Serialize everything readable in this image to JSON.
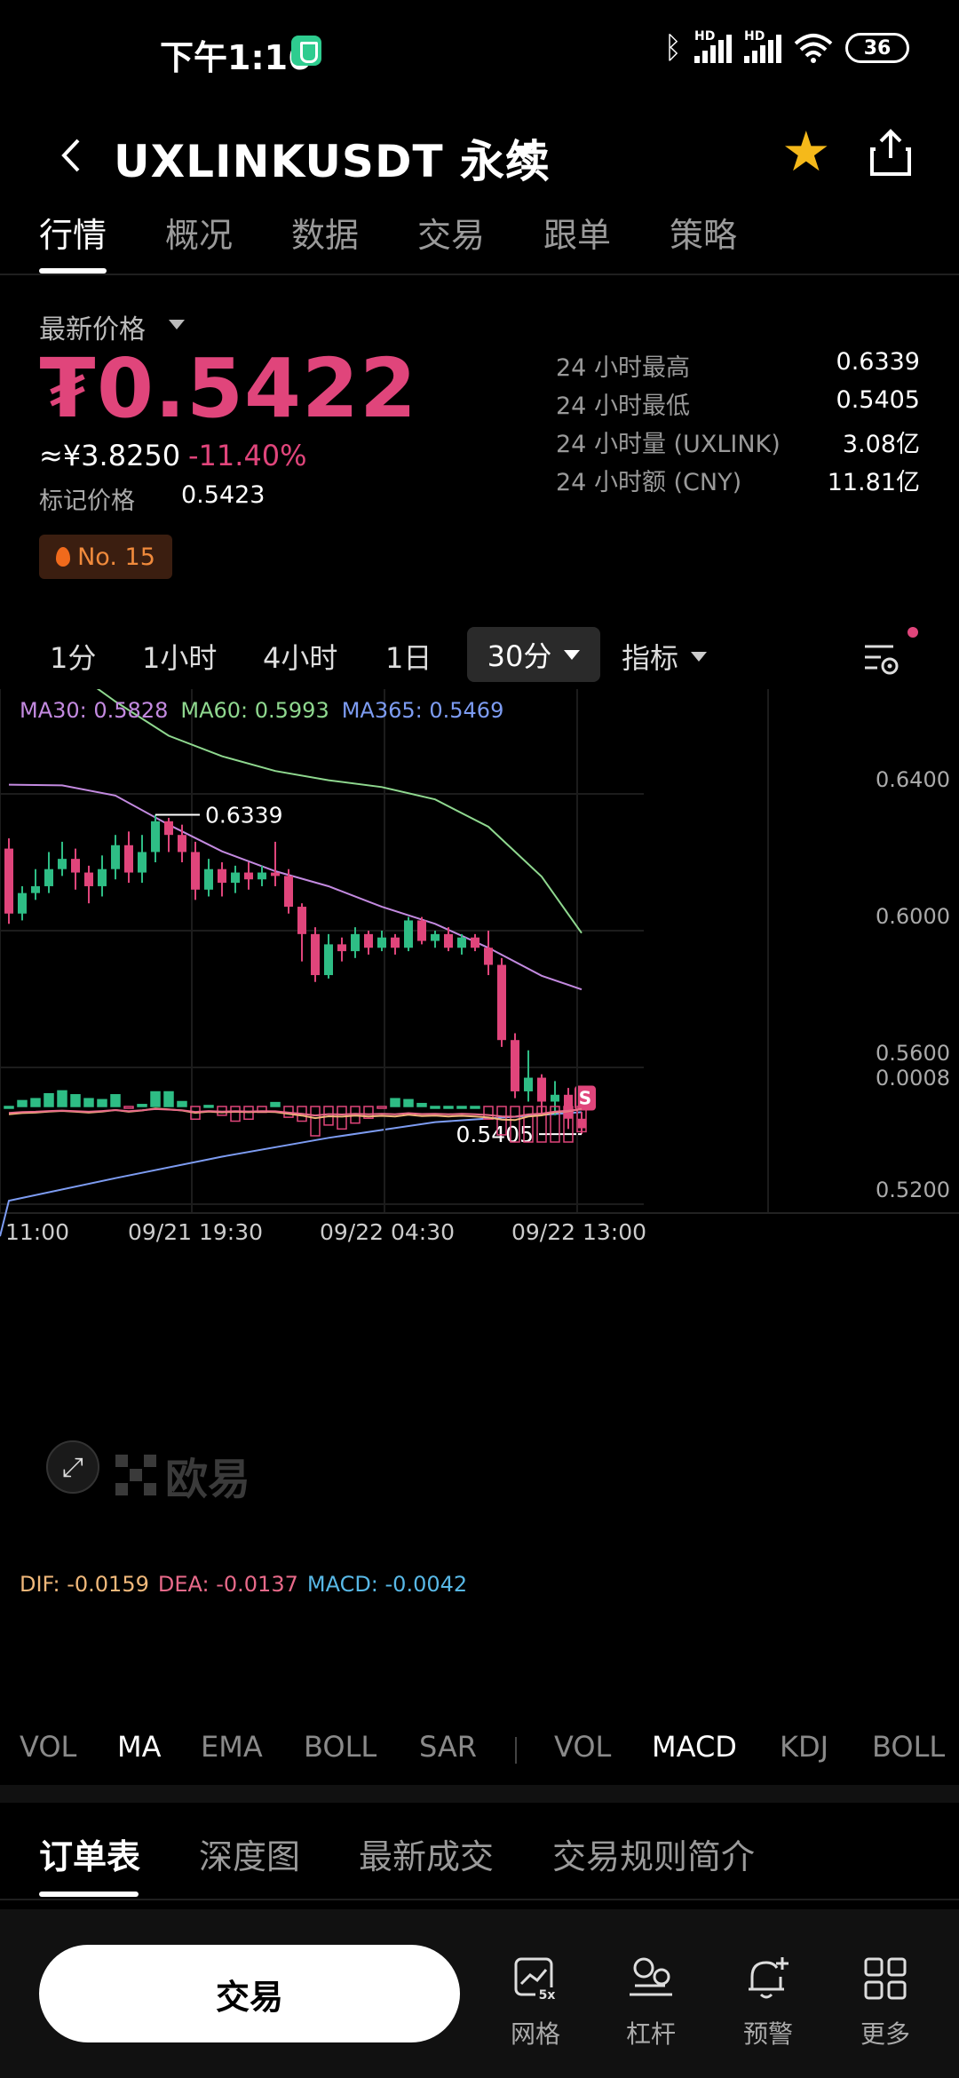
{
  "status_bar": {
    "time": "下午1:16",
    "hd1": "HD",
    "hd2": "HD",
    "battery": "36"
  },
  "header": {
    "title": "UXLINKUSDT 永续"
  },
  "tabs": [
    "行情",
    "概况",
    "数据",
    "交易",
    "跟单",
    "策略"
  ],
  "price_block": {
    "label": "最新价格",
    "price": "₮0.5422",
    "cny": "≈¥3.8250",
    "change": "-11.40%",
    "mark_label": "标记价格",
    "mark_value": "0.5423",
    "rank": "No. 15"
  },
  "stats": [
    {
      "label": "24 小时最高",
      "value": "0.6339"
    },
    {
      "label": "24 小时最低",
      "value": "0.5405"
    },
    {
      "label": "24 小时量 (UXLINK)",
      "value": "3.08亿"
    },
    {
      "label": "24 小时额 (CNY)",
      "value": "11.81亿"
    }
  ],
  "intervals": {
    "items": [
      "1分",
      "1小时",
      "4小时",
      "1日"
    ],
    "active": "30分",
    "indicator": "指标"
  },
  "ma_legend": {
    "ma30": "MA30: 0.5828",
    "ma60": "MA60: 0.5993",
    "ma365": "MA365: 0.5469"
  },
  "colors": {
    "up": "#2ebd85",
    "down": "#e0457b",
    "ma30": "#c38ae0",
    "ma60": "#8fd88f",
    "ma365": "#7d9cf2",
    "dif": "#f0b87a",
    "dea": "#e86a8a",
    "macd": "#58b8e6"
  },
  "chart_data": {
    "type": "candlestick",
    "y_ticks": [
      "0.6400",
      "0.6000",
      "0.5600",
      "0.5200"
    ],
    "x_ticks": [
      "11:00",
      "09/21 19:30",
      "09/22 04:30",
      "09/22 13:00"
    ],
    "high_annotation": "0.6339",
    "low_annotation": "0.5405",
    "signal_marker": "S",
    "ma30_points": [
      [
        0,
        0.6427
      ],
      [
        4,
        0.6425
      ],
      [
        8,
        0.6395
      ],
      [
        12,
        0.631
      ],
      [
        16,
        0.6232
      ],
      [
        20,
        0.6174
      ],
      [
        24,
        0.613
      ],
      [
        28,
        0.607
      ],
      [
        32,
        0.602
      ],
      [
        36,
        0.595
      ],
      [
        40,
        0.5868
      ],
      [
        43,
        0.5828
      ]
    ],
    "ma60_points": [
      [
        0,
        0.694
      ],
      [
        4,
        0.6782
      ],
      [
        8,
        0.667
      ],
      [
        12,
        0.657
      ],
      [
        16,
        0.651
      ],
      [
        20,
        0.6467
      ],
      [
        24,
        0.644
      ],
      [
        28,
        0.642
      ],
      [
        32,
        0.6384
      ],
      [
        36,
        0.6304
      ],
      [
        40,
        0.6158
      ],
      [
        43,
        0.5993
      ]
    ],
    "ma365_points": [
      [
        0,
        0.521
      ],
      [
        8,
        0.5276
      ],
      [
        16,
        0.5339
      ],
      [
        24,
        0.5394
      ],
      [
        32,
        0.544
      ],
      [
        43,
        0.5469
      ]
    ],
    "candles": [
      [
        0.624,
        0.605,
        0.627,
        0.602
      ],
      [
        0.605,
        0.611,
        0.613,
        0.603
      ],
      [
        0.611,
        0.613,
        0.618,
        0.609
      ],
      [
        0.613,
        0.618,
        0.623,
        0.611
      ],
      [
        0.618,
        0.621,
        0.626,
        0.616
      ],
      [
        0.621,
        0.617,
        0.624,
        0.612
      ],
      [
        0.617,
        0.613,
        0.619,
        0.608
      ],
      [
        0.613,
        0.618,
        0.622,
        0.61
      ],
      [
        0.618,
        0.625,
        0.628,
        0.615
      ],
      [
        0.625,
        0.617,
        0.629,
        0.614
      ],
      [
        0.617,
        0.623,
        0.628,
        0.614
      ],
      [
        0.623,
        0.632,
        0.6339,
        0.62
      ],
      [
        0.632,
        0.628,
        0.633,
        0.623
      ],
      [
        0.628,
        0.623,
        0.631,
        0.62
      ],
      [
        0.623,
        0.612,
        0.626,
        0.609
      ],
      [
        0.612,
        0.618,
        0.621,
        0.61
      ],
      [
        0.618,
        0.614,
        0.62,
        0.61
      ],
      [
        0.614,
        0.617,
        0.619,
        0.611
      ],
      [
        0.617,
        0.615,
        0.62,
        0.612
      ],
      [
        0.615,
        0.617,
        0.619,
        0.613
      ],
      [
        0.617,
        0.616,
        0.626,
        0.613
      ],
      [
        0.616,
        0.607,
        0.618,
        0.605
      ],
      [
        0.607,
        0.599,
        0.608,
        0.591
      ],
      [
        0.599,
        0.587,
        0.601,
        0.585
      ],
      [
        0.587,
        0.596,
        0.599,
        0.586
      ],
      [
        0.596,
        0.594,
        0.598,
        0.591
      ],
      [
        0.594,
        0.599,
        0.601,
        0.592
      ],
      [
        0.599,
        0.595,
        0.6,
        0.593
      ],
      [
        0.595,
        0.598,
        0.6,
        0.594
      ],
      [
        0.598,
        0.595,
        0.599,
        0.593
      ],
      [
        0.595,
        0.603,
        0.604,
        0.594
      ],
      [
        0.603,
        0.597,
        0.604,
        0.596
      ],
      [
        0.597,
        0.599,
        0.6,
        0.595
      ],
      [
        0.599,
        0.595,
        0.601,
        0.594
      ],
      [
        0.595,
        0.598,
        0.599,
        0.593
      ],
      [
        0.598,
        0.595,
        0.599,
        0.594
      ],
      [
        0.595,
        0.59,
        0.6,
        0.587
      ],
      [
        0.59,
        0.568,
        0.592,
        0.566
      ],
      [
        0.568,
        0.553,
        0.57,
        0.551
      ],
      [
        0.553,
        0.557,
        0.565,
        0.55
      ],
      [
        0.557,
        0.55,
        0.558,
        0.546
      ],
      [
        0.55,
        0.552,
        0.556,
        0.546
      ],
      [
        0.552,
        0.545,
        0.554,
        0.542
      ],
      [
        0.545,
        0.5422,
        0.547,
        0.5405
      ]
    ],
    "macd_tick": "0.0008",
    "macd_legend": {
      "dif": "DIF: -0.0159",
      "dea": "DEA: -0.0137",
      "macd": "MACD: -0.0042"
    }
  },
  "indicator_tabs": {
    "main": [
      "VOL",
      "MA",
      "EMA",
      "BOLL",
      "SAR"
    ],
    "sub": [
      "VOL",
      "MACD",
      "KDJ",
      "BOLL"
    ]
  },
  "order_tabs": [
    "订单表",
    "深度图",
    "最新成交",
    "交易规则简介"
  ],
  "bottom_bar": {
    "trade": "交易",
    "nav": [
      {
        "label": "网格",
        "icon": "grid-chart-icon",
        "badge": "5x"
      },
      {
        "label": "杠杆",
        "icon": "leverage-icon"
      },
      {
        "label": "预警",
        "icon": "alert-bell-icon"
      },
      {
        "label": "更多",
        "icon": "more-apps-icon"
      }
    ]
  }
}
